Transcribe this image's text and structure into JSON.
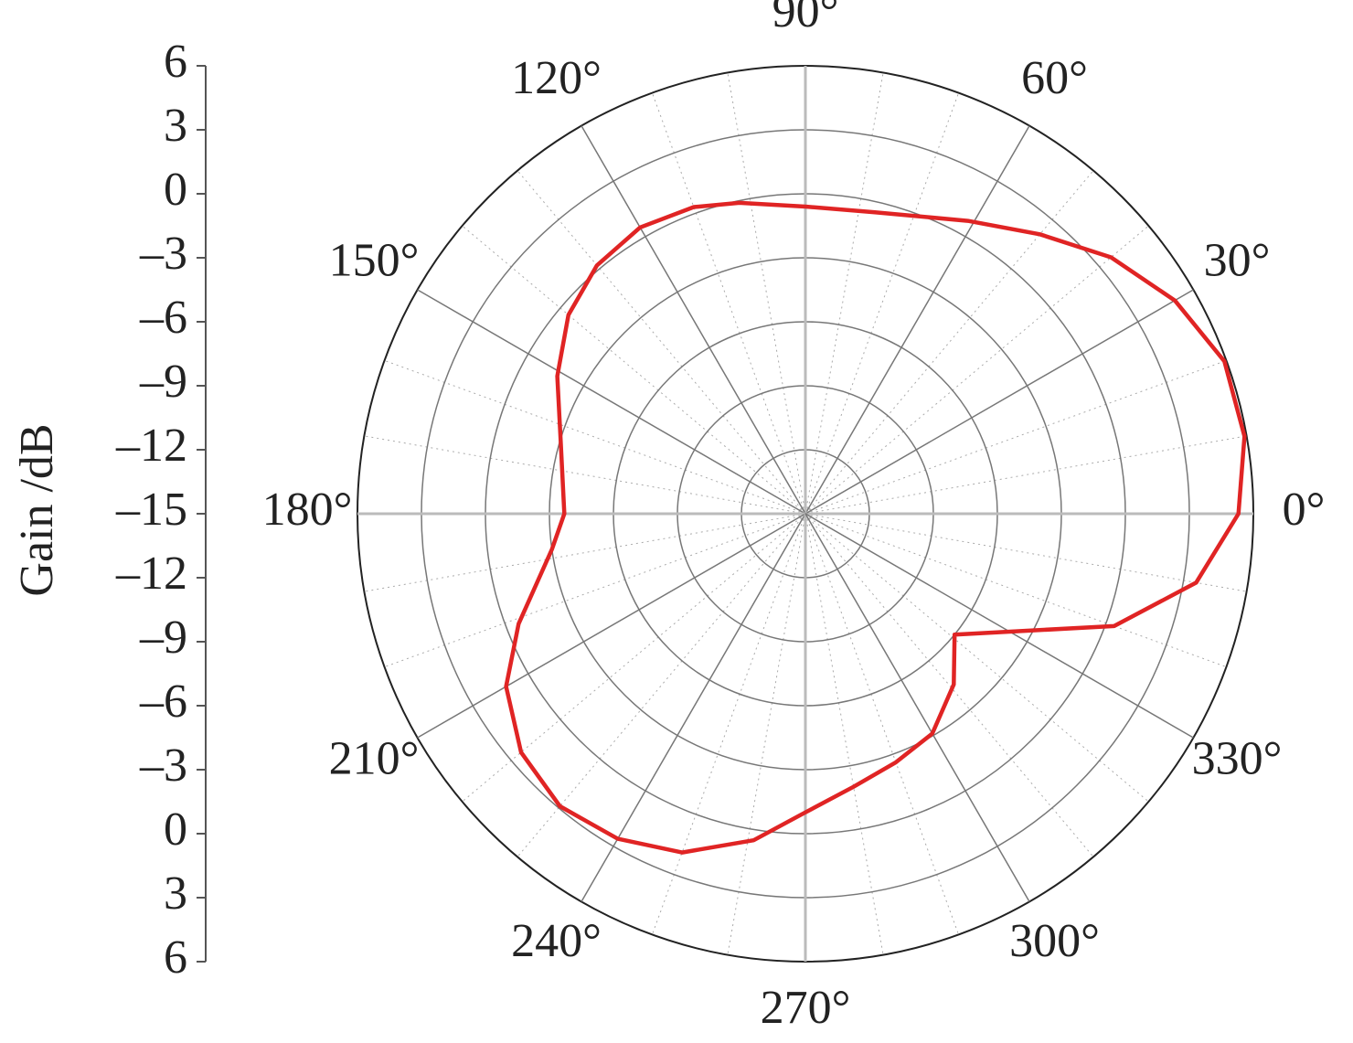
{
  "chart_data": {
    "type": "polar",
    "y_label": "Gain /dB",
    "rlim": [
      -15,
      6
    ],
    "rticks": [
      6,
      3,
      0,
      {
        "value": -3,
        "label": "–3"
      },
      {
        "value": -6,
        "label": "–6"
      },
      {
        "value": -9,
        "label": "–9"
      },
      {
        "value": -12,
        "label": "–12"
      },
      {
        "value": -15,
        "label": "–15"
      },
      {
        "value": -12,
        "label": "–12"
      },
      {
        "value": -9,
        "label": "–9"
      },
      {
        "value": -6,
        "label": "–6"
      },
      {
        "value": -3,
        "label": "–3"
      },
      0,
      3,
      6
    ],
    "thetaticks": [
      {
        "value": 0,
        "label": "0°"
      },
      {
        "value": 30,
        "label": "30°"
      },
      {
        "value": 60,
        "label": "60°"
      },
      {
        "value": 90,
        "label": "90°"
      },
      {
        "value": 120,
        "label": "120°"
      },
      {
        "value": 150,
        "label": "150°"
      },
      {
        "value": 180,
        "label": "180°"
      },
      {
        "value": 210,
        "label": "210°"
      },
      {
        "value": 240,
        "label": "240°"
      },
      {
        "value": 270,
        "label": "270°"
      },
      {
        "value": 300,
        "label": "300°"
      },
      {
        "value": 330,
        "label": "330°"
      }
    ],
    "grid": true,
    "series": [
      {
        "color": "#e02424",
        "theta": [
          0,
          10,
          20,
          30,
          40,
          50,
          61,
          77,
          90,
          102,
          110,
          120,
          130,
          140,
          151,
          163,
          180,
          188,
          201,
          210,
          220,
          230,
          240,
          250,
          261,
          270,
          280,
          290,
          300,
          311,
          321,
          340,
          350
        ],
        "values": [
          5.3,
          5.9,
          5.9,
          5.0,
          3.7,
          2.1,
          0.7,
          -0.5,
          -0.6,
          -0.1,
          0.3,
          0.5,
          0.2,
          -0.5,
          -1.7,
          -3.0,
          -3.7,
          -3.0,
          -0.6,
          1.2,
          2.4,
          2.9,
          2.6,
          1.9,
          0.5,
          -1.0,
          -2.0,
          -2.6,
          -3.1,
          -4.4,
          -6.0,
          0.4,
          3.6
        ]
      }
    ]
  }
}
